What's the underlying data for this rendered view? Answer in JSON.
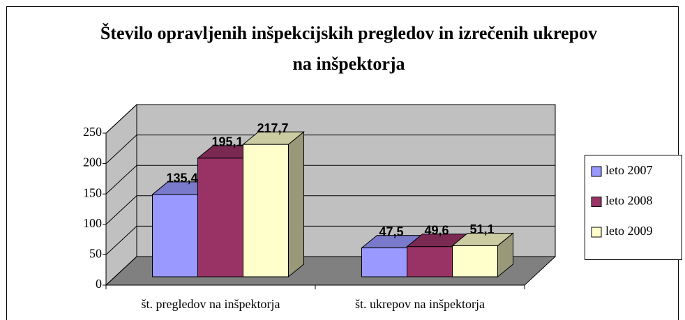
{
  "chart_data": {
    "type": "bar3d",
    "title": "Število opravljenih inšpekcijskih pregledov in izrečenih ukrepov na inšpektorja",
    "categories": [
      "št. pregledov na inšpektorja",
      "št. ukrepov na inšpektorja"
    ],
    "series": [
      {
        "name": "leto 2007",
        "color": "#9999ff",
        "values": [
          135.4,
          47.5
        ],
        "value_labels": [
          "135,4",
          "47,5"
        ]
      },
      {
        "name": "leto 2008",
        "color": "#993366",
        "values": [
          195.1,
          49.6
        ],
        "value_labels": [
          "195,1",
          "49,6"
        ]
      },
      {
        "name": "leto 2009",
        "color": "#ffffcc",
        "values": [
          217.7,
          51.1
        ],
        "value_labels": [
          "217,7",
          "51,1"
        ]
      }
    ],
    "ylim": [
      0,
      250
    ],
    "yticks": [
      0,
      50,
      100,
      150,
      200,
      250
    ],
    "grid": true,
    "legend": "right"
  }
}
